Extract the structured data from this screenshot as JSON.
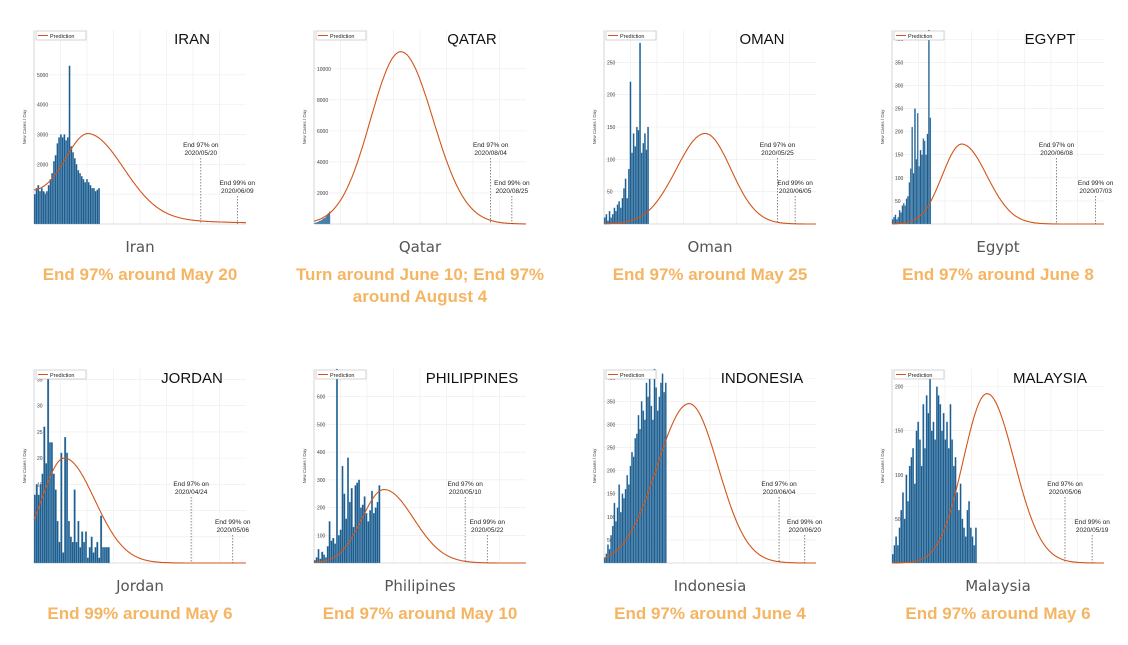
{
  "colors": {
    "bar": "#1f5d8c",
    "bar_edge": "#7fb0d6",
    "curve": "#d2551a",
    "headline": "#f5b563",
    "caption": "#555555"
  },
  "legend_label": "Prediction",
  "ylabel": "New Cases / Day",
  "panels": [
    {
      "country": "Iran",
      "title": "IRAN",
      "headline": "End 97% around May 20",
      "chart_data": {
        "type": "bar",
        "title": "IRAN",
        "ylabel": "New Cases / Day",
        "ylim": [
          0,
          6500
        ],
        "yticks": [
          1000,
          2000,
          3000,
          4000,
          5000
        ],
        "x_days": 122,
        "values": [
          1000,
          1200,
          1300,
          1100,
          1200,
          1100,
          1000,
          1100,
          1300,
          1500,
          1700,
          2100,
          2300,
          2700,
          2900,
          3000,
          2900,
          3000,
          2800,
          2900,
          5300,
          2600,
          2400,
          2200,
          2000,
          1800,
          1700,
          1600,
          1500,
          1400,
          1500,
          1400,
          1300,
          1200,
          1200,
          1100,
          1150,
          1200
        ],
        "prediction": {
          "peak_day": 32,
          "peak": 2600,
          "sigma": 14,
          "sigma_right": 20,
          "base": 950
        },
        "markers": [
          {
            "label": "End 97% on",
            "date": "2020/05/20",
            "day": 96,
            "level": "high"
          },
          {
            "label": "End 99% on",
            "date": "2020/06/09",
            "day": 117,
            "level": "low"
          }
        ]
      }
    },
    {
      "country": "Qatar",
      "title": "QATAR",
      "headline": "Turn around June 10; End 97% around August 4",
      "chart_data": {
        "type": "bar",
        "title": "QATAR",
        "ylabel": "New Cases / Day",
        "ylim": [
          0,
          12500
        ],
        "yticks": [
          2000,
          4000,
          6000,
          8000,
          10000
        ],
        "x_days": 210,
        "values": [
          50,
          80,
          100,
          120,
          150,
          200,
          220,
          250,
          300,
          350,
          380,
          420,
          500,
          600,
          700,
          800
        ],
        "prediction": {
          "peak_day": 86,
          "peak": 11100,
          "sigma": 30,
          "sigma_right": 32,
          "base": 0
        },
        "markers": [
          {
            "label": "End 97% on",
            "date": "2020/08/04",
            "day": 175,
            "level": "high"
          },
          {
            "label": "End 99% on",
            "date": "2020/08/25",
            "day": 196,
            "level": "low"
          }
        ]
      }
    },
    {
      "country": "Oman",
      "title": "OMAN",
      "headline": "End 97% around May 25",
      "chart_data": {
        "type": "bar",
        "title": "OMAN",
        "ylabel": "New Cases / Day",
        "ylim": [
          0,
          300
        ],
        "yticks": [
          50,
          100,
          150,
          200,
          250
        ],
        "x_days": 132,
        "values": [
          10,
          15,
          5,
          20,
          10,
          15,
          25,
          20,
          30,
          35,
          25,
          40,
          55,
          70,
          40,
          85,
          220,
          110,
          140,
          120,
          150,
          145,
          280,
          110,
          125,
          140,
          115,
          150
        ],
        "prediction": {
          "peak_day": 63,
          "peak": 140,
          "sigma": 18,
          "sigma_right": 16,
          "base": 0
        },
        "markers": [
          {
            "label": "End 97% on",
            "date": "2020/05/25",
            "day": 108,
            "level": "high"
          },
          {
            "label": "End 99% on",
            "date": "2020/06/05",
            "day": 119,
            "level": "low"
          }
        ]
      }
    },
    {
      "country": "Egypt",
      "title": "EGYPT",
      "headline": "End 97% around June 8",
      "chart_data": {
        "type": "bar",
        "title": "EGYPT",
        "ylabel": "New Cases / Day",
        "ylim": [
          0,
          420
        ],
        "yticks": [
          50,
          100,
          150,
          200,
          250,
          300,
          350,
          400
        ],
        "x_days": 152,
        "values": [
          10,
          15,
          20,
          10,
          15,
          30,
          25,
          40,
          45,
          40,
          55,
          60,
          90,
          120,
          210,
          110,
          250,
          140,
          240,
          125,
          160,
          150,
          185,
          180,
          150,
          195,
          430,
          230
        ],
        "prediction": {
          "peak_day": 50,
          "peak": 173,
          "sigma": 14,
          "sigma_right": 18,
          "base": 0
        },
        "markers": [
          {
            "label": "End 97% on",
            "date": "2020/06/08",
            "day": 118,
            "level": "high"
          },
          {
            "label": "End 99% on",
            "date": "2020/07/03",
            "day": 146,
            "level": "low"
          }
        ]
      }
    },
    {
      "country": "Jordan",
      "title": "JORDAN",
      "headline": "End 99% around May 6",
      "chart_data": {
        "type": "bar",
        "title": "JORDAN",
        "ylabel": "New Cases / Day",
        "ylim": [
          0,
          37
        ],
        "yticks": [
          5,
          10,
          15,
          20,
          25,
          30,
          35
        ],
        "x_days": 112,
        "values": [
          13,
          15,
          13,
          15,
          17,
          26,
          19,
          36,
          23,
          23,
          17,
          14,
          8,
          4,
          21,
          2,
          24,
          21,
          8,
          5,
          4,
          14,
          4,
          8,
          3,
          6,
          4,
          6,
          1,
          3,
          5,
          2,
          3,
          4,
          1,
          9,
          3,
          3,
          3,
          3
        ],
        "prediction": {
          "peak_day": 16,
          "peak": 20,
          "sigma": 12,
          "sigma_right": 16,
          "base": 0
        },
        "markers": [
          {
            "label": "End 97% on",
            "date": "2020/04/24",
            "day": 83,
            "level": "high"
          },
          {
            "label": "End 99% on",
            "date": "2020/05/06",
            "day": 105,
            "level": "low"
          }
        ]
      }
    },
    {
      "country": "Philipines",
      "title": "PHILIPPINES",
      "headline": "End 97% around May 10",
      "chart_data": {
        "type": "bar",
        "title": "PHILIPPINES",
        "ylabel": "New Cases / Day",
        "ylim": [
          0,
          700
        ],
        "yticks": [
          100,
          200,
          300,
          400,
          500,
          600
        ],
        "x_days": 115,
        "values": [
          10,
          20,
          50,
          15,
          40,
          30,
          20,
          60,
          150,
          80,
          90,
          70,
          700,
          100,
          120,
          350,
          250,
          160,
          380,
          220,
          270,
          130,
          280,
          290,
          300,
          200,
          210,
          240,
          180,
          150,
          190,
          260,
          180,
          200,
          220,
          280
        ],
        "prediction": {
          "peak_day": 38,
          "peak": 265,
          "sigma": 12,
          "sigma_right": 16,
          "base": 0
        },
        "markers": [
          {
            "label": "End 97% on",
            "date": "2020/05/10",
            "day": 82,
            "level": "high"
          },
          {
            "label": "End 99% on",
            "date": "2020/05/22",
            "day": 94,
            "level": "low"
          }
        ]
      }
    },
    {
      "country": "Indonesia",
      "title": "INDONESIA",
      "headline": "End 97% around June 4",
      "chart_data": {
        "type": "bar",
        "title": "INDONESIA",
        "ylabel": "New Cases / Day",
        "ylim": [
          0,
          420
        ],
        "yticks": [
          50,
          100,
          150,
          200,
          250,
          300,
          350,
          400
        ],
        "x_days": 132,
        "values": [
          10,
          20,
          40,
          30,
          60,
          80,
          130,
          90,
          120,
          170,
          110,
          150,
          140,
          160,
          190,
          170,
          210,
          240,
          230,
          270,
          280,
          320,
          290,
          350,
          330,
          310,
          390,
          360,
          400,
          340,
          310,
          420,
          380,
          330,
          360,
          390,
          410,
          370,
          390
        ],
        "prediction": {
          "peak_day": 53,
          "peak": 345,
          "sigma": 20,
          "sigma_right": 18,
          "base": 0
        },
        "markers": [
          {
            "label": "End 97% on",
            "date": "2020/06/04",
            "day": 109,
            "level": "high"
          },
          {
            "label": "End 99% on",
            "date": "2020/06/20",
            "day": 125,
            "level": "low"
          }
        ]
      }
    },
    {
      "country": "Malaysia",
      "title": "MALAYSIA",
      "headline": "End 97% around May 6",
      "chart_data": {
        "type": "bar",
        "title": "MALAYSIA",
        "ylabel": "New Cases / Day",
        "ylim": [
          0,
          220
        ],
        "yticks": [
          50,
          100,
          150,
          200
        ],
        "x_days": 125,
        "values": [
          10,
          20,
          30,
          20,
          40,
          60,
          80,
          50,
          100,
          70,
          110,
          120,
          130,
          90,
          150,
          160,
          140,
          110,
          180,
          130,
          190,
          170,
          210,
          150,
          160,
          140,
          200,
          190,
          180,
          150,
          170,
          140,
          160,
          130,
          180,
          140,
          110,
          120,
          80,
          60,
          90,
          50,
          40,
          30,
          60,
          70,
          40,
          30,
          20,
          40
        ],
        "prediction": {
          "peak_day": 56,
          "peak": 192,
          "sigma": 14,
          "sigma_right": 16,
          "base": 0
        },
        "markers": [
          {
            "label": "End 97% on",
            "date": "2020/05/06",
            "day": 102,
            "level": "high"
          },
          {
            "label": "End 99% on",
            "date": "2020/05/19",
            "day": 118,
            "level": "low"
          }
        ]
      }
    }
  ]
}
